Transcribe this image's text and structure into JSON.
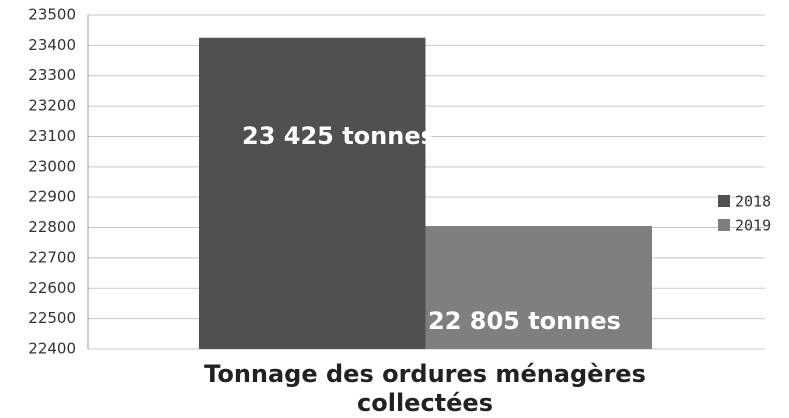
{
  "chart_data": {
    "type": "bar",
    "title": "Tonnage des ordures ménagères collectées",
    "categories": [
      null
    ],
    "series": [
      {
        "name": "2018",
        "color": "#505050",
        "values": [
          23425
        ],
        "value_labels": [
          "23 425 tonnes"
        ]
      },
      {
        "name": "2019",
        "color": "#7f7f7f",
        "values": [
          22805
        ],
        "value_labels": [
          "22 805 tonnes"
        ]
      }
    ],
    "ylim": [
      22400,
      23500
    ],
    "yticks": [
      22400,
      22500,
      22600,
      22700,
      22800,
      22900,
      23000,
      23100,
      23200,
      23300,
      23400,
      23500
    ],
    "grid": true,
    "legend": "right"
  }
}
